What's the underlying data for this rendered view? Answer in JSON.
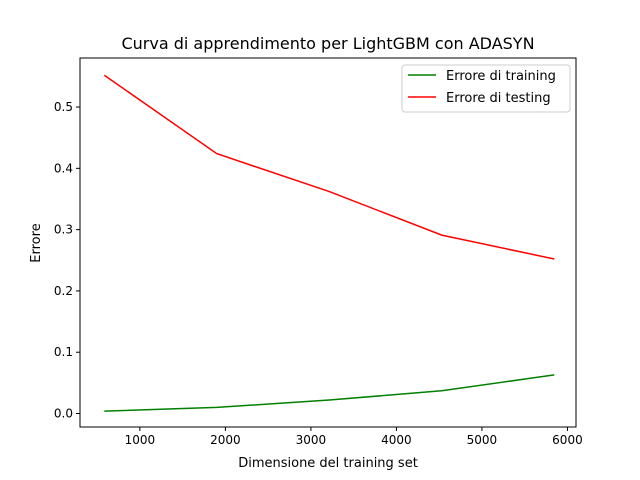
{
  "chart_data": {
    "type": "line",
    "title": "Curva di apprendimento per LightGBM con ADASYN",
    "xlabel": "Dimensione del training set",
    "ylabel": "Errore",
    "xlim": [
      300,
      6100
    ],
    "ylim": [
      -0.022,
      0.58
    ],
    "xticks": [
      1000,
      2000,
      3000,
      4000,
      5000,
      6000
    ],
    "yticks": [
      0.0,
      0.1,
      0.2,
      0.3,
      0.4,
      0.5
    ],
    "xtick_labels": [
      "1000",
      "2000",
      "3000",
      "4000",
      "5000",
      "6000"
    ],
    "ytick_labels": [
      "0.0",
      "0.1",
      "0.2",
      "0.3",
      "0.4",
      "0.5"
    ],
    "grid": false,
    "legend_position": "top-right",
    "x": [
      584,
      1899,
      3215,
      4530,
      5846
    ],
    "series": [
      {
        "name": "Errore di training",
        "color": "#008000",
        "values": [
          0.004,
          0.01,
          0.022,
          0.037,
          0.063
        ]
      },
      {
        "name": "Errore di testing",
        "color": "#ff0000",
        "values": [
          0.552,
          0.424,
          0.362,
          0.291,
          0.252
        ]
      }
    ]
  }
}
